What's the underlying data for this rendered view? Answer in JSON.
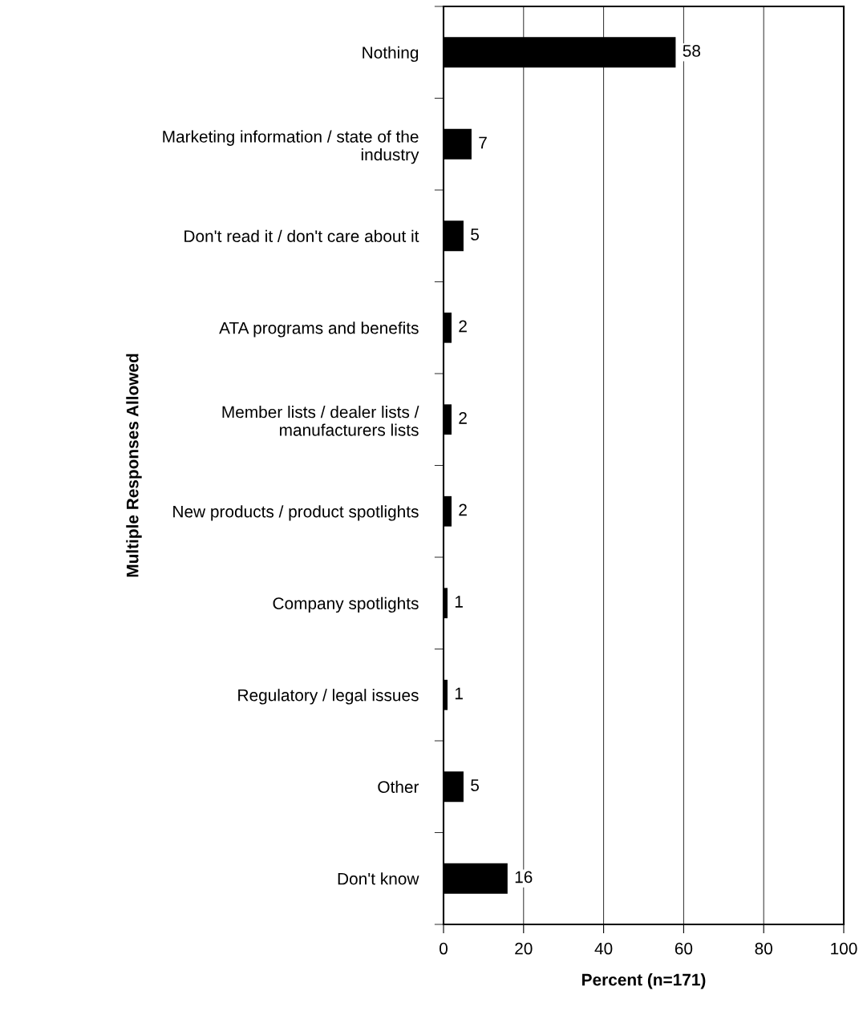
{
  "chart_data": {
    "type": "bar",
    "orientation": "horizontal",
    "xlabel": "Percent (n=171)",
    "ylabel": "Multiple Responses Allowed",
    "categories": [
      "Nothing",
      "Marketing information / state of the industry",
      "Don't read it / don't care about it",
      "ATA programs and benefits",
      "Member lists / dealer lists / manufacturers lists",
      "New products / product spotlights",
      "Company spotlights",
      "Regulatory / legal issues",
      "Other",
      "Don't know"
    ],
    "values": [
      58,
      7,
      5,
      2,
      2,
      2,
      1,
      1,
      5,
      16
    ],
    "color": "#000000",
    "xlim": [
      0,
      100
    ],
    "xticks": [
      0,
      20,
      40,
      60,
      80,
      100
    ],
    "grid": "x",
    "data_labels": true
  }
}
